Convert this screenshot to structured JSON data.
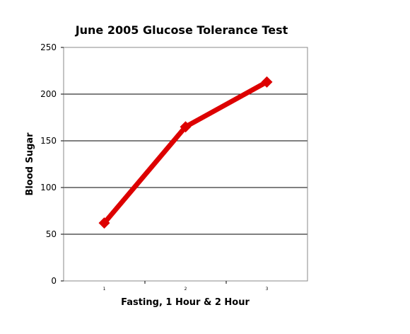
{
  "chart_data": {
    "type": "line",
    "title": "June 2005 Glucose Tolerance Test",
    "xlabel": "Fasting, 1 Hour & 2 Hour",
    "ylabel": "Blood Sugar",
    "categories": [
      "1",
      "2",
      "3"
    ],
    "series": [
      {
        "values": [
          62,
          165,
          213
        ],
        "color": "#dd0000"
      }
    ],
    "ylim": [
      0,
      250
    ],
    "yticks": [
      "0",
      "50",
      "100",
      "150",
      "200",
      "250"
    ],
    "grid": true,
    "legend": "none"
  }
}
